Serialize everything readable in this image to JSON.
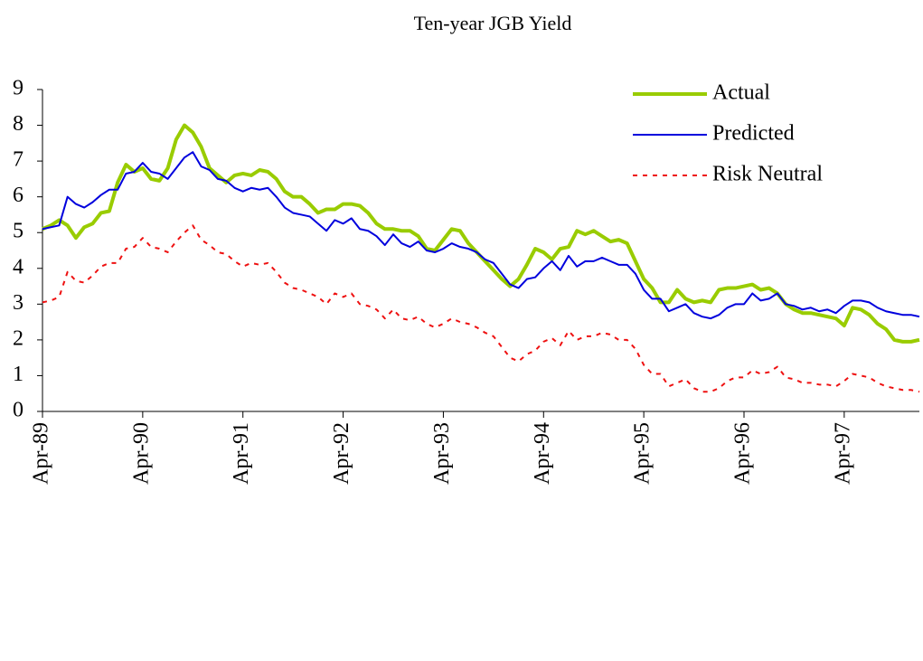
{
  "chart_data": {
    "type": "line",
    "title": "Ten-year JGB Yield",
    "categories": [
      "Apr-89",
      null,
      null,
      null,
      null,
      null,
      null,
      null,
      null,
      null,
      null,
      null,
      "Apr-90",
      null,
      null,
      null,
      null,
      null,
      null,
      null,
      null,
      null,
      null,
      null,
      "Apr-91",
      null,
      null,
      null,
      null,
      null,
      null,
      null,
      null,
      null,
      null,
      null,
      "Apr-92",
      null,
      null,
      null,
      null,
      null,
      null,
      null,
      null,
      null,
      null,
      null,
      "Apr-93",
      null,
      null,
      null,
      null,
      null,
      null,
      null,
      null,
      null,
      null,
      null,
      "Apr-94",
      null,
      null,
      null,
      null,
      null,
      null,
      null,
      null,
      null,
      null,
      null,
      "Apr-95",
      null,
      null,
      null,
      null,
      null,
      null,
      null,
      null,
      null,
      null,
      null,
      "Apr-96",
      null,
      null,
      null,
      null,
      null,
      null,
      null,
      null,
      null,
      null,
      null,
      "Apr-97",
      null,
      null,
      null,
      null,
      null,
      null,
      null,
      null,
      null
    ],
    "ylim": [
      0,
      9
    ],
    "yticks": [
      0,
      1,
      2,
      3,
      4,
      5,
      6,
      7,
      8,
      9
    ],
    "legend": "upper right",
    "series": [
      {
        "name": "Actual",
        "color": "#99cc00",
        "style": "solid",
        "linewidth": 4,
        "values": [
          5.1,
          5.2,
          5.35,
          5.2,
          4.85,
          5.15,
          5.25,
          5.55,
          5.6,
          6.4,
          6.9,
          6.7,
          6.8,
          6.5,
          6.45,
          6.8,
          7.6,
          8.0,
          7.8,
          7.4,
          6.8,
          6.6,
          6.4,
          6.6,
          6.65,
          6.6,
          6.75,
          6.7,
          6.5,
          6.15,
          6.0,
          6.0,
          5.8,
          5.55,
          5.65,
          5.65,
          5.8,
          5.8,
          5.75,
          5.55,
          5.25,
          5.1,
          5.1,
          5.05,
          5.05,
          4.9,
          4.55,
          4.5,
          4.8,
          5.1,
          5.05,
          4.7,
          4.45,
          4.2,
          3.95,
          3.7,
          3.5,
          3.7,
          4.1,
          4.55,
          4.45,
          4.25,
          4.55,
          4.6,
          5.05,
          4.95,
          5.05,
          4.9,
          4.75,
          4.8,
          4.7,
          4.2,
          3.7,
          3.45,
          3.05,
          3.05,
          3.4,
          3.15,
          3.05,
          3.1,
          3.05,
          3.4,
          3.45,
          3.45,
          3.5,
          3.55,
          3.4,
          3.45,
          3.3,
          3.0,
          2.85,
          2.75,
          2.75,
          2.7,
          2.65,
          2.6,
          2.4,
          2.9,
          2.85,
          2.7,
          2.45,
          2.3,
          2.0,
          1.95,
          1.95,
          2.0
        ]
      },
      {
        "name": "Predicted",
        "color": "#0000dd",
        "style": "solid",
        "linewidth": 2,
        "values": [
          5.1,
          5.15,
          5.2,
          6.0,
          5.8,
          5.7,
          5.85,
          6.05,
          6.2,
          6.2,
          6.65,
          6.7,
          6.95,
          6.7,
          6.65,
          6.5,
          6.8,
          7.1,
          7.25,
          6.85,
          6.75,
          6.5,
          6.45,
          6.25,
          6.15,
          6.25,
          6.2,
          6.25,
          6.0,
          5.7,
          5.55,
          5.5,
          5.45,
          5.25,
          5.05,
          5.35,
          5.25,
          5.4,
          5.1,
          5.05,
          4.9,
          4.65,
          4.95,
          4.7,
          4.6,
          4.75,
          4.5,
          4.45,
          4.55,
          4.7,
          4.6,
          4.55,
          4.45,
          4.25,
          4.15,
          3.85,
          3.55,
          3.45,
          3.7,
          3.75,
          4.0,
          4.2,
          3.95,
          4.35,
          4.05,
          4.2,
          4.2,
          4.3,
          4.2,
          4.1,
          4.1,
          3.85,
          3.4,
          3.15,
          3.15,
          2.8,
          2.9,
          3.0,
          2.75,
          2.65,
          2.6,
          2.7,
          2.9,
          3.0,
          3.0,
          3.3,
          3.1,
          3.15,
          3.3,
          3.0,
          2.95,
          2.85,
          2.9,
          2.8,
          2.85,
          2.75,
          2.95,
          3.1,
          3.1,
          3.05,
          2.9,
          2.8,
          2.75,
          2.7,
          2.7,
          2.65
        ]
      },
      {
        "name": "Risk Neutral",
        "color": "#ee1111",
        "style": "dotted",
        "linewidth": 2,
        "values": [
          3.05,
          3.1,
          3.2,
          3.9,
          3.65,
          3.6,
          3.8,
          4.05,
          4.15,
          4.15,
          4.55,
          4.6,
          4.85,
          4.6,
          4.55,
          4.45,
          4.75,
          5.0,
          5.2,
          4.8,
          4.65,
          4.45,
          4.4,
          4.2,
          4.05,
          4.15,
          4.1,
          4.15,
          3.9,
          3.6,
          3.45,
          3.4,
          3.3,
          3.2,
          3.0,
          3.3,
          3.2,
          3.3,
          3.0,
          2.95,
          2.85,
          2.6,
          2.85,
          2.6,
          2.55,
          2.65,
          2.45,
          2.35,
          2.45,
          2.6,
          2.5,
          2.45,
          2.35,
          2.2,
          2.1,
          1.8,
          1.5,
          1.4,
          1.6,
          1.7,
          1.95,
          2.05,
          1.85,
          2.25,
          2.0,
          2.1,
          2.1,
          2.2,
          2.15,
          2.0,
          2.0,
          1.75,
          1.3,
          1.05,
          1.05,
          0.7,
          0.8,
          0.9,
          0.65,
          0.55,
          0.55,
          0.65,
          0.85,
          0.95,
          0.95,
          1.15,
          1.05,
          1.1,
          1.25,
          0.95,
          0.9,
          0.8,
          0.8,
          0.75,
          0.75,
          0.7,
          0.85,
          1.05,
          1.0,
          0.95,
          0.8,
          0.7,
          0.65,
          0.6,
          0.6,
          0.55
        ]
      }
    ]
  }
}
